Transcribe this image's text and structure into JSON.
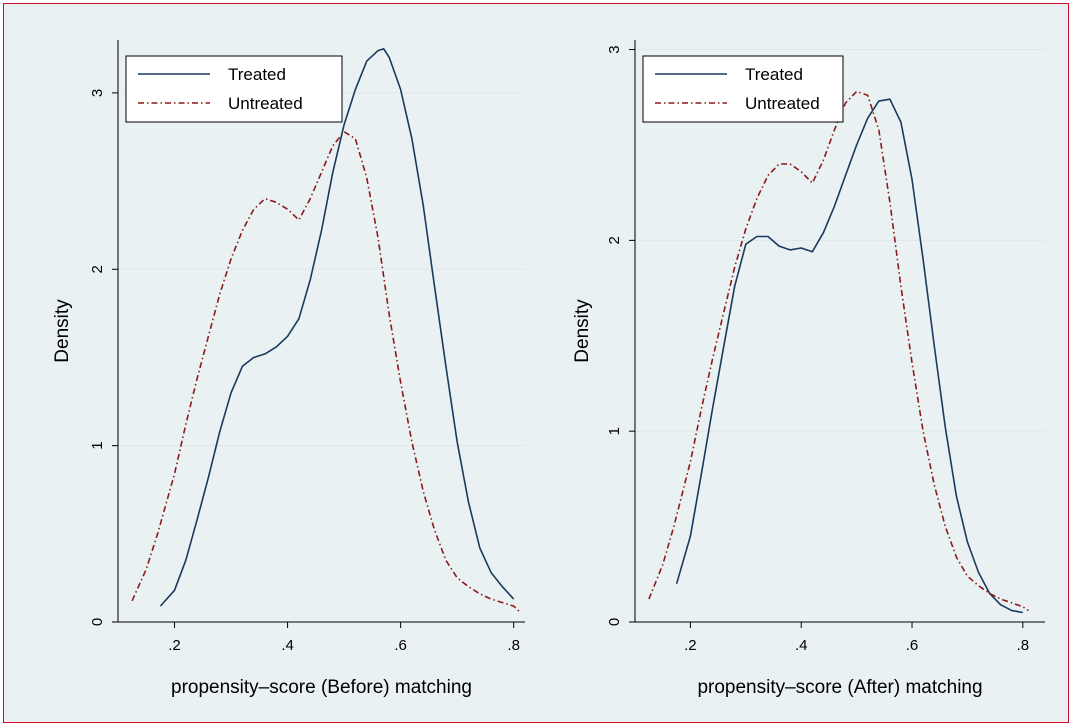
{
  "colors": {
    "background": "#eaf1f3",
    "frame_border": "#d0102a",
    "grid": "#dfe7ea",
    "treated": "#1a3a5c",
    "untreated": "#8b1a1a"
  },
  "chart_data": [
    {
      "type": "line",
      "xlabel": "propensity–score (Before) matching",
      "ylabel": "Density",
      "xlim": [
        0.1,
        0.82
      ],
      "ylim": [
        0,
        3.3
      ],
      "xticks": [
        0.2,
        0.4,
        0.6,
        0.8
      ],
      "xtick_labels": [
        ".2",
        ".4",
        ".6",
        ".8"
      ],
      "yticks": [
        0,
        1,
        2,
        3
      ],
      "ytick_labels": [
        "0",
        "1",
        "2",
        "3"
      ],
      "grid": true,
      "legend": "top-left",
      "series": [
        {
          "name": "Treated",
          "style": "solid",
          "x": [
            0.175,
            0.2,
            0.22,
            0.24,
            0.26,
            0.28,
            0.3,
            0.32,
            0.34,
            0.36,
            0.38,
            0.4,
            0.42,
            0.44,
            0.46,
            0.48,
            0.5,
            0.52,
            0.54,
            0.56,
            0.57,
            0.58,
            0.6,
            0.62,
            0.64,
            0.66,
            0.68,
            0.7,
            0.72,
            0.74,
            0.76,
            0.78,
            0.8
          ],
          "y": [
            0.09,
            0.18,
            0.35,
            0.58,
            0.82,
            1.08,
            1.3,
            1.45,
            1.5,
            1.52,
            1.56,
            1.62,
            1.72,
            1.94,
            2.22,
            2.55,
            2.82,
            3.02,
            3.18,
            3.24,
            3.25,
            3.2,
            3.02,
            2.74,
            2.36,
            1.9,
            1.45,
            1.02,
            0.68,
            0.42,
            0.28,
            0.2,
            0.13
          ]
        },
        {
          "name": "Untreated",
          "style": "dash-dot",
          "x": [
            0.125,
            0.15,
            0.17,
            0.2,
            0.22,
            0.24,
            0.26,
            0.28,
            0.3,
            0.32,
            0.34,
            0.36,
            0.38,
            0.4,
            0.42,
            0.44,
            0.46,
            0.48,
            0.5,
            0.52,
            0.54,
            0.56,
            0.58,
            0.6,
            0.62,
            0.64,
            0.66,
            0.68,
            0.7,
            0.72,
            0.74,
            0.76,
            0.78,
            0.8,
            0.81
          ],
          "y": [
            0.12,
            0.3,
            0.5,
            0.84,
            1.12,
            1.38,
            1.62,
            1.86,
            2.06,
            2.22,
            2.34,
            2.4,
            2.38,
            2.34,
            2.28,
            2.4,
            2.55,
            2.7,
            2.78,
            2.74,
            2.52,
            2.18,
            1.74,
            1.36,
            1.02,
            0.74,
            0.52,
            0.35,
            0.25,
            0.2,
            0.16,
            0.13,
            0.11,
            0.09,
            0.06
          ]
        }
      ]
    },
    {
      "type": "line",
      "xlabel": "propensity–score (After) matching",
      "ylabel": "Density",
      "xlim": [
        0.1,
        0.84
      ],
      "ylim": [
        0,
        3.05
      ],
      "xticks": [
        0.2,
        0.4,
        0.6,
        0.8
      ],
      "xtick_labels": [
        ".2",
        ".4",
        ".6",
        ".8"
      ],
      "yticks": [
        0,
        1,
        2,
        3
      ],
      "ytick_labels": [
        "0",
        "1",
        "2",
        "3"
      ],
      "grid": true,
      "legend": "top-left",
      "series": [
        {
          "name": "Treated",
          "style": "solid",
          "x": [
            0.175,
            0.2,
            0.22,
            0.24,
            0.26,
            0.28,
            0.3,
            0.32,
            0.34,
            0.36,
            0.38,
            0.4,
            0.42,
            0.44,
            0.46,
            0.48,
            0.5,
            0.52,
            0.54,
            0.56,
            0.58,
            0.6,
            0.62,
            0.64,
            0.66,
            0.68,
            0.7,
            0.72,
            0.74,
            0.76,
            0.78,
            0.8
          ],
          "y": [
            0.2,
            0.45,
            0.78,
            1.12,
            1.44,
            1.76,
            1.98,
            2.02,
            2.02,
            1.97,
            1.95,
            1.96,
            1.94,
            2.04,
            2.18,
            2.34,
            2.5,
            2.64,
            2.73,
            2.74,
            2.62,
            2.32,
            1.9,
            1.45,
            1.02,
            0.66,
            0.42,
            0.26,
            0.15,
            0.09,
            0.06,
            0.05
          ]
        },
        {
          "name": "Untreated",
          "style": "dash-dot",
          "x": [
            0.125,
            0.15,
            0.17,
            0.2,
            0.22,
            0.24,
            0.26,
            0.28,
            0.3,
            0.32,
            0.34,
            0.36,
            0.38,
            0.4,
            0.42,
            0.44,
            0.46,
            0.48,
            0.5,
            0.52,
            0.54,
            0.56,
            0.58,
            0.6,
            0.62,
            0.64,
            0.66,
            0.68,
            0.7,
            0.72,
            0.74,
            0.76,
            0.78,
            0.8,
            0.81
          ],
          "y": [
            0.12,
            0.3,
            0.5,
            0.84,
            1.12,
            1.38,
            1.62,
            1.86,
            2.06,
            2.22,
            2.34,
            2.4,
            2.4,
            2.36,
            2.3,
            2.42,
            2.58,
            2.72,
            2.78,
            2.76,
            2.58,
            2.2,
            1.76,
            1.36,
            1.0,
            0.72,
            0.5,
            0.34,
            0.24,
            0.19,
            0.15,
            0.12,
            0.1,
            0.08,
            0.06
          ]
        }
      ]
    }
  ]
}
